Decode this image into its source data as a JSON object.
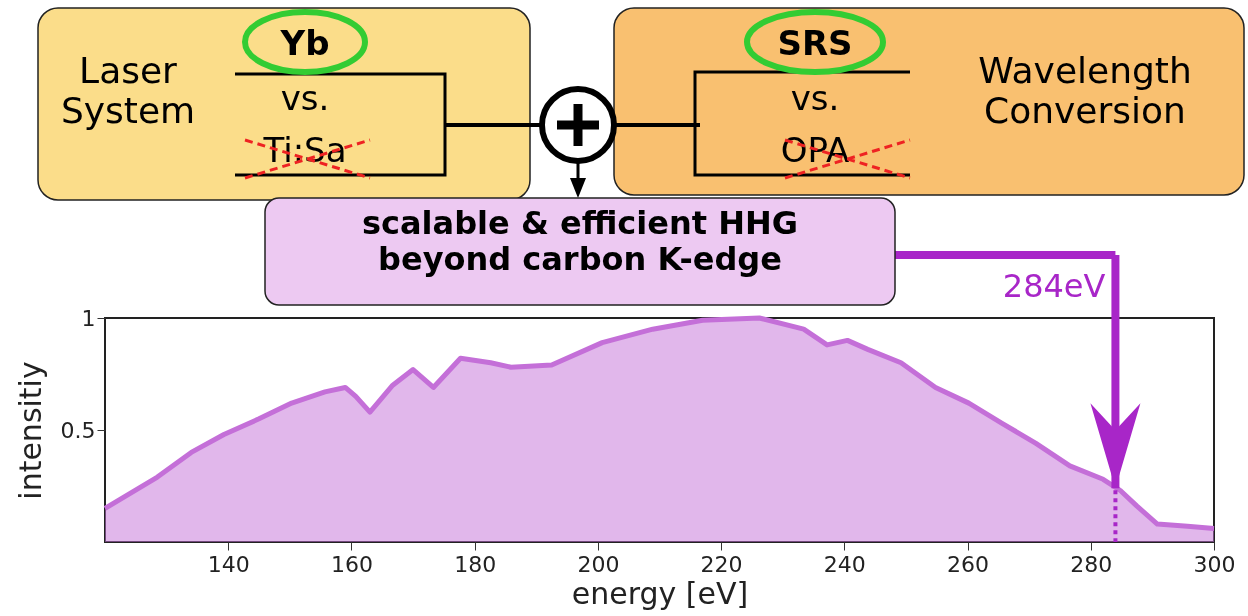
{
  "chart_data": {
    "type": "area",
    "xlabel": "energy [eV]",
    "ylabel": "intensitiy",
    "x": [
      120,
      128.5,
      134,
      139.3,
      145,
      150.3,
      155.7,
      159,
      160.7,
      163,
      166.7,
      170,
      173.3,
      177.7,
      182.6,
      185.9,
      192.5,
      200.7,
      208.9,
      217,
      226.2,
      233.4,
      237.2,
      240.5,
      243.8,
      249.2,
      254.8,
      260.2,
      265.6,
      271.1,
      276.6,
      282,
      284.8,
      287.5,
      290.8,
      295.7,
      300
    ],
    "series": [
      {
        "color": "#c46fd8",
        "values": [
          0.15,
          0.29,
          0.4,
          0.48,
          0.55,
          0.62,
          0.67,
          0.69,
          0.65,
          0.58,
          0.7,
          0.77,
          0.69,
          0.82,
          0.8,
          0.78,
          0.79,
          0.89,
          0.95,
          0.99,
          1.0,
          0.95,
          0.88,
          0.9,
          0.86,
          0.8,
          0.69,
          0.62,
          0.53,
          0.44,
          0.34,
          0.28,
          0.23,
          0.16,
          0.08,
          0.07,
          0.06
        ]
      }
    ],
    "xlim": [
      120,
      300
    ],
    "xticks": [
      140,
      160,
      180,
      200,
      220,
      240,
      260,
      280,
      300
    ],
    "ylim": [
      0,
      1
    ],
    "yticks": [
      0.5,
      1
    ],
    "grid": false,
    "annotations": [
      "Laser System",
      "Yb",
      "vs.",
      "Ti:Sa",
      "SRS",
      "vs.",
      "OPA",
      "Wavelength Conversion",
      "scalable & efficient HHG beyond carbon K-edge",
      {
        "text": "284eV",
        "x": 284,
        "y": 0.24
      }
    ]
  }
}
